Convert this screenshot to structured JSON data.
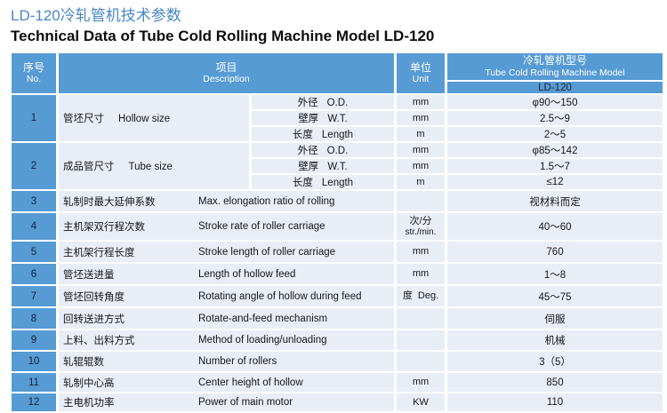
{
  "page": {
    "title_zh": "LD-120冷轧管机技术参数",
    "title_en": "Technical Data of Tube Cold Rolling Machine Model LD-120"
  },
  "colors": {
    "accent_blue": "#579bd5",
    "row_tint": "#e9edf6",
    "title_blue": "#4a86c6"
  },
  "table": {
    "header": {
      "no_zh": "序号",
      "no_en": "No.",
      "desc_zh": "项目",
      "desc_en": "Description",
      "unit_zh": "单位",
      "unit_en": "Unit",
      "model_zh": "冷轧管机型号",
      "model_en": "Tube Cold Rolling Machine Model",
      "model_value": "LD-120"
    },
    "groups": [
      {
        "no": "1",
        "label_zh": "管坯尺寸",
        "label_en": "Hollow size",
        "items": [
          {
            "param_zh": "外径",
            "param_en": "O.D.",
            "unit": "mm",
            "value": "φ90～150"
          },
          {
            "param_zh": "壁厚",
            "param_en": "W.T.",
            "unit": "mm",
            "value": "2.5～9"
          },
          {
            "param_zh": "长度",
            "param_en": "Length",
            "unit": "m",
            "value": "2～5"
          }
        ]
      },
      {
        "no": "2",
        "label_zh": "成品管尺寸",
        "label_en": "Tube size",
        "items": [
          {
            "param_zh": "外径",
            "param_en": "O.D.",
            "unit": "mm",
            "value": "φ85～142"
          },
          {
            "param_zh": "壁厚",
            "param_en": "W.T.",
            "unit": "mm",
            "value": "1.5～7"
          },
          {
            "param_zh": "长度",
            "param_en": "Length",
            "unit": "m",
            "value": "≤12"
          }
        ]
      }
    ],
    "rows": [
      {
        "no": "3",
        "desc_zh": "轧制时最大延伸系数",
        "desc_en": "Max. elongation ratio of rolling",
        "unit": "",
        "unit2": "",
        "value": "视材料而定"
      },
      {
        "no": "4",
        "desc_zh": "主机架双行程次数",
        "desc_en": "Stroke rate of roller carriage",
        "unit": "次/分",
        "unit2": "str./min.",
        "value": "40～60"
      },
      {
        "no": "5",
        "desc_zh": "主机架行程长度",
        "desc_en": "Stroke length of roller carriage",
        "unit": "mm",
        "unit2": "",
        "value": "760"
      },
      {
        "no": "6",
        "desc_zh": "管坯送进量",
        "desc_en": "Length of hollow feed",
        "unit": "mm",
        "unit2": "",
        "value": "1～8"
      },
      {
        "no": "7",
        "desc_zh": "管坯回转角度",
        "desc_en": "Rotating angle of hollow during feed",
        "unit": "度  Deg.",
        "unit2": "",
        "value": "45～75"
      },
      {
        "no": "8",
        "desc_zh": "回转送进方式",
        "desc_en": "Rotate-and-feed mechanism",
        "unit": "",
        "unit2": "",
        "value": "伺服"
      },
      {
        "no": "9",
        "desc_zh": "上料、出料方式",
        "desc_en": "Method of loading/unloading",
        "unit": "",
        "unit2": "",
        "value": "机械"
      },
      {
        "no": "10",
        "desc_zh": "轧辊辊数",
        "desc_en": "Number of rollers",
        "unit": "",
        "unit2": "",
        "value": "3（5）"
      },
      {
        "no": "11",
        "desc_zh": "轧制中心高",
        "desc_en": "Center height of hollow",
        "unit": "mm",
        "unit2": "",
        "value": "850"
      },
      {
        "no": "12",
        "desc_zh": "主电机功率",
        "desc_en": "Power of main motor",
        "unit": "KW",
        "unit2": "",
        "value": "110"
      }
    ]
  }
}
